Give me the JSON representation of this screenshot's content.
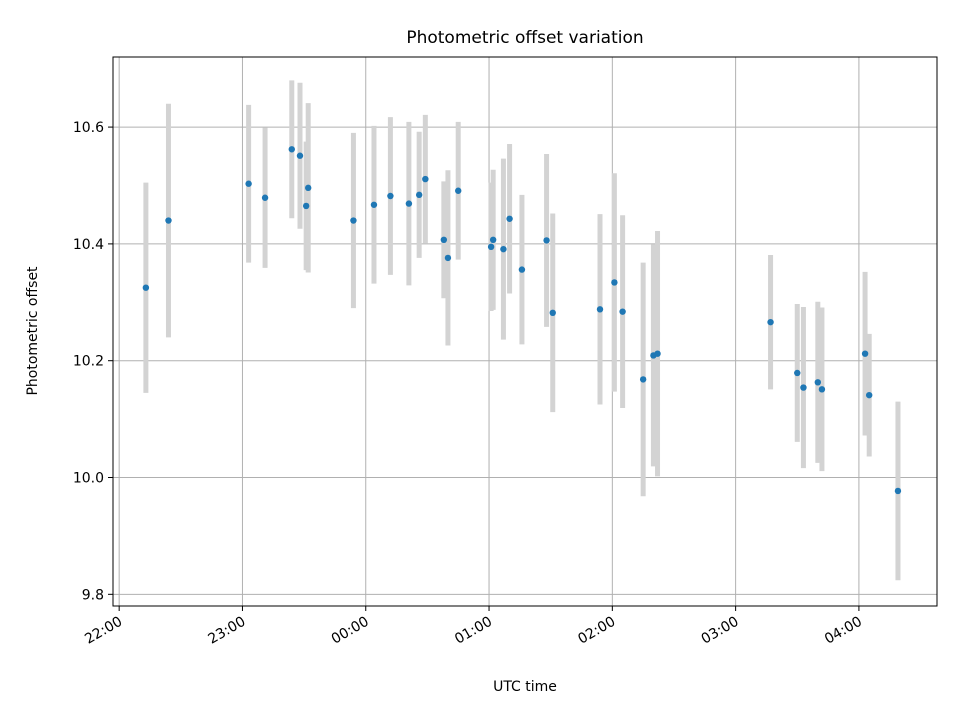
{
  "chart_data": {
    "type": "scatter",
    "title": "Photometric offset variation",
    "xlabel": "UTC time",
    "ylabel": "Photometric offset",
    "x_unit": "UTC hh:mm",
    "xlim": [
      "21:57",
      "04:38"
    ],
    "ylim": [
      9.78,
      10.72
    ],
    "grid": true,
    "x_ticks": [
      "22:00",
      "23:00",
      "00:00",
      "01:00",
      "02:00",
      "03:00",
      "04:00"
    ],
    "y_ticks": [
      "9.8",
      "10.0",
      "10.2",
      "10.4",
      "10.6"
    ],
    "point_color": "#1f77b4",
    "errorbar_color": "#d3d3d3",
    "points": [
      {
        "t": "22:13",
        "y": 10.325,
        "err": 0.18
      },
      {
        "t": "22:24",
        "y": 10.44,
        "err": 0.2
      },
      {
        "t": "23:03",
        "y": 10.503,
        "err": 0.135
      },
      {
        "t": "23:11",
        "y": 10.479,
        "err": 0.12
      },
      {
        "t": "23:24",
        "y": 10.562,
        "err": 0.118
      },
      {
        "t": "23:28",
        "y": 10.551,
        "err": 0.125
      },
      {
        "t": "23:31",
        "y": 10.465,
        "err": 0.11
      },
      {
        "t": "23:32",
        "y": 10.496,
        "err": 0.145
      },
      {
        "t": "23:54",
        "y": 10.44,
        "err": 0.15
      },
      {
        "t": "00:04",
        "y": 10.467,
        "err": 0.135
      },
      {
        "t": "00:12",
        "y": 10.482,
        "err": 0.135
      },
      {
        "t": "00:21",
        "y": 10.469,
        "err": 0.14
      },
      {
        "t": "00:26",
        "y": 10.484,
        "err": 0.108
      },
      {
        "t": "00:29",
        "y": 10.511,
        "err": 0.11
      },
      {
        "t": "00:38",
        "y": 10.407,
        "err": 0.1
      },
      {
        "t": "00:40",
        "y": 10.376,
        "err": 0.15
      },
      {
        "t": "00:45",
        "y": 10.491,
        "err": 0.118
      },
      {
        "t": "01:01",
        "y": 10.395,
        "err": 0.11
      },
      {
        "t": "01:02",
        "y": 10.407,
        "err": 0.12
      },
      {
        "t": "01:07",
        "y": 10.391,
        "err": 0.155
      },
      {
        "t": "01:10",
        "y": 10.443,
        "err": 0.128
      },
      {
        "t": "01:16",
        "y": 10.356,
        "err": 0.128
      },
      {
        "t": "01:28",
        "y": 10.406,
        "err": 0.148
      },
      {
        "t": "01:31",
        "y": 10.282,
        "err": 0.17
      },
      {
        "t": "01:54",
        "y": 10.288,
        "err": 0.163
      },
      {
        "t": "02:01",
        "y": 10.334,
        "err": 0.187
      },
      {
        "t": "02:05",
        "y": 10.284,
        "err": 0.165
      },
      {
        "t": "02:15",
        "y": 10.168,
        "err": 0.2
      },
      {
        "t": "02:20",
        "y": 10.209,
        "err": 0.19
      },
      {
        "t": "02:22",
        "y": 10.212,
        "err": 0.21
      },
      {
        "t": "03:17",
        "y": 10.266,
        "err": 0.115
      },
      {
        "t": "03:30",
        "y": 10.179,
        "err": 0.118
      },
      {
        "t": "03:33",
        "y": 10.154,
        "err": 0.138
      },
      {
        "t": "03:40",
        "y": 10.163,
        "err": 0.138
      },
      {
        "t": "03:42",
        "y": 10.151,
        "err": 0.14
      },
      {
        "t": "04:03",
        "y": 10.212,
        "err": 0.14
      },
      {
        "t": "04:05",
        "y": 10.141,
        "err": 0.105
      },
      {
        "t": "04:19",
        "y": 9.977,
        "err": 0.153
      }
    ]
  }
}
